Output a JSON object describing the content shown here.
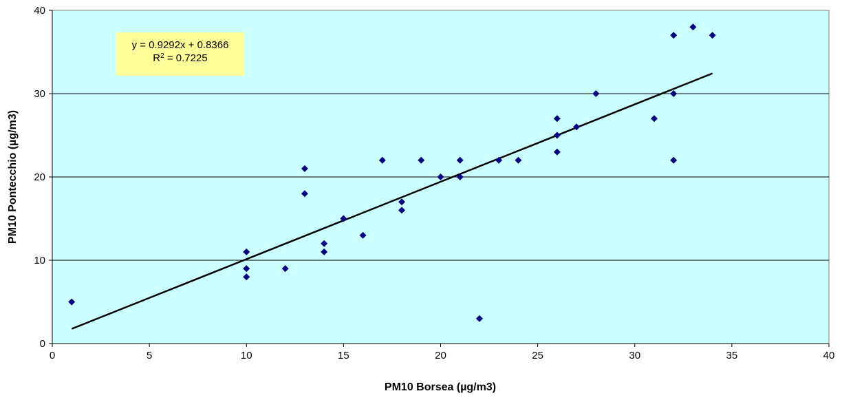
{
  "chart_data": {
    "type": "scatter",
    "xlabel": "PM10 Borsea (µg/m3)",
    "ylabel": "PM10 Pontecchio (µg/m3)",
    "xlim": [
      0,
      40
    ],
    "ylim": [
      0,
      40
    ],
    "xticks": [
      0,
      5,
      10,
      15,
      20,
      25,
      30,
      35,
      40
    ],
    "yticks": [
      0,
      10,
      20,
      30,
      40
    ],
    "grid": "horizontal major gridlines",
    "background_color": "#ccffff",
    "marker_color": "#000080",
    "trendline_color": "#000000",
    "points": [
      {
        "x": 1,
        "y": 5
      },
      {
        "x": 10,
        "y": 11
      },
      {
        "x": 10,
        "y": 9
      },
      {
        "x": 10,
        "y": 8
      },
      {
        "x": 12,
        "y": 9
      },
      {
        "x": 13,
        "y": 21
      },
      {
        "x": 13,
        "y": 18
      },
      {
        "x": 14,
        "y": 12
      },
      {
        "x": 14,
        "y": 11
      },
      {
        "x": 15,
        "y": 15
      },
      {
        "x": 16,
        "y": 13
      },
      {
        "x": 17,
        "y": 22
      },
      {
        "x": 18,
        "y": 17
      },
      {
        "x": 18,
        "y": 16
      },
      {
        "x": 19,
        "y": 22
      },
      {
        "x": 20,
        "y": 20
      },
      {
        "x": 21,
        "y": 22
      },
      {
        "x": 21,
        "y": 20
      },
      {
        "x": 22,
        "y": 3
      },
      {
        "x": 23,
        "y": 22
      },
      {
        "x": 24,
        "y": 22
      },
      {
        "x": 26,
        "y": 27
      },
      {
        "x": 26,
        "y": 25
      },
      {
        "x": 26,
        "y": 23
      },
      {
        "x": 27,
        "y": 26
      },
      {
        "x": 28,
        "y": 30
      },
      {
        "x": 31,
        "y": 27
      },
      {
        "x": 32,
        "y": 37
      },
      {
        "x": 32,
        "y": 30
      },
      {
        "x": 32,
        "y": 22
      },
      {
        "x": 33,
        "y": 38
      },
      {
        "x": 34,
        "y": 37
      }
    ],
    "trendline": {
      "slope": 0.9292,
      "intercept": 0.8366,
      "x_start": 1,
      "x_end": 34
    },
    "annotation": {
      "equation": "y = 0.9292x + 0.8366",
      "r_squared_label": "R",
      "r_squared_sup": "2",
      "r_squared_value": " = 0.7225",
      "box_color": "#ffff99"
    }
  }
}
